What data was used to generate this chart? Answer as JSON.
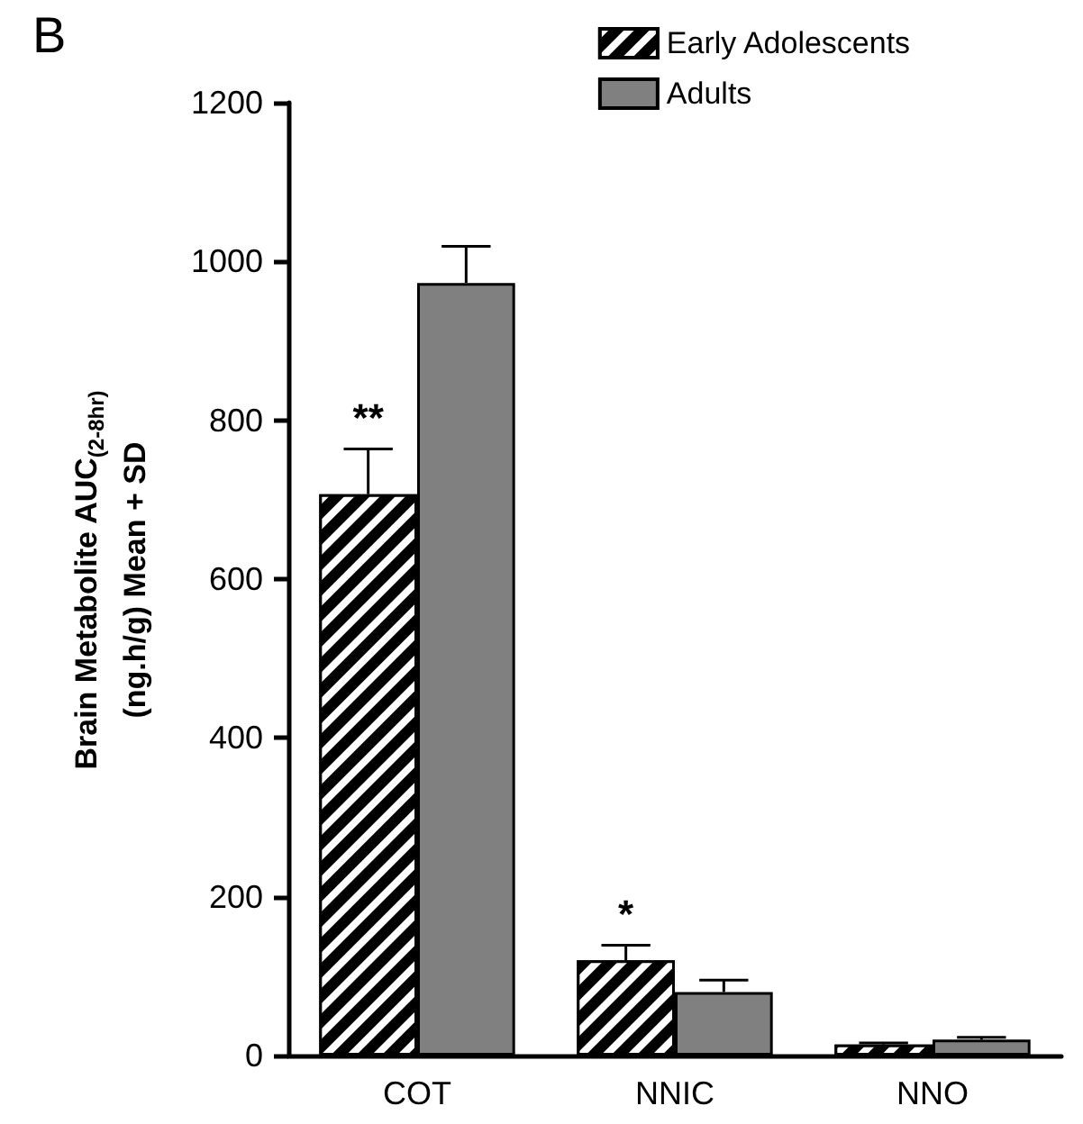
{
  "chart_data": {
    "type": "bar",
    "title": "B",
    "ylabel": "Brain Metabolite AUC$_{(2-8hr)}$\n(ng.h/g) Mean + SD",
    "categories": [
      "COT",
      "NNIC",
      "NNO"
    ],
    "series": [
      {
        "name": "Early Adolescents",
        "color": "#000000",
        "values": [
          707,
          120,
          14
        ],
        "errors": [
          [
            707,
            764
          ],
          [
            120,
            139
          ],
          [
            14,
            16
          ]
        ]
      },
      {
        "name": "Adults",
        "color": "#808080",
        "values": [
          973,
          80,
          20
        ],
        "errors": [
          [
            973,
            1019
          ],
          [
            80,
            95
          ],
          [
            20,
            23
          ]
        ]
      }
    ],
    "ylim": [
      0,
      1200
    ],
    "yticks": [
      0,
      200,
      400,
      600,
      800,
      1000,
      1200
    ],
    "annotations": [
      {
        "text": "**",
        "x": "COT",
        "y": 707
      },
      {
        "text": "*",
        "x": "NNIC",
        "y": 120
      }
    ],
    "grid": false,
    "legend": "top right"
  }
}
